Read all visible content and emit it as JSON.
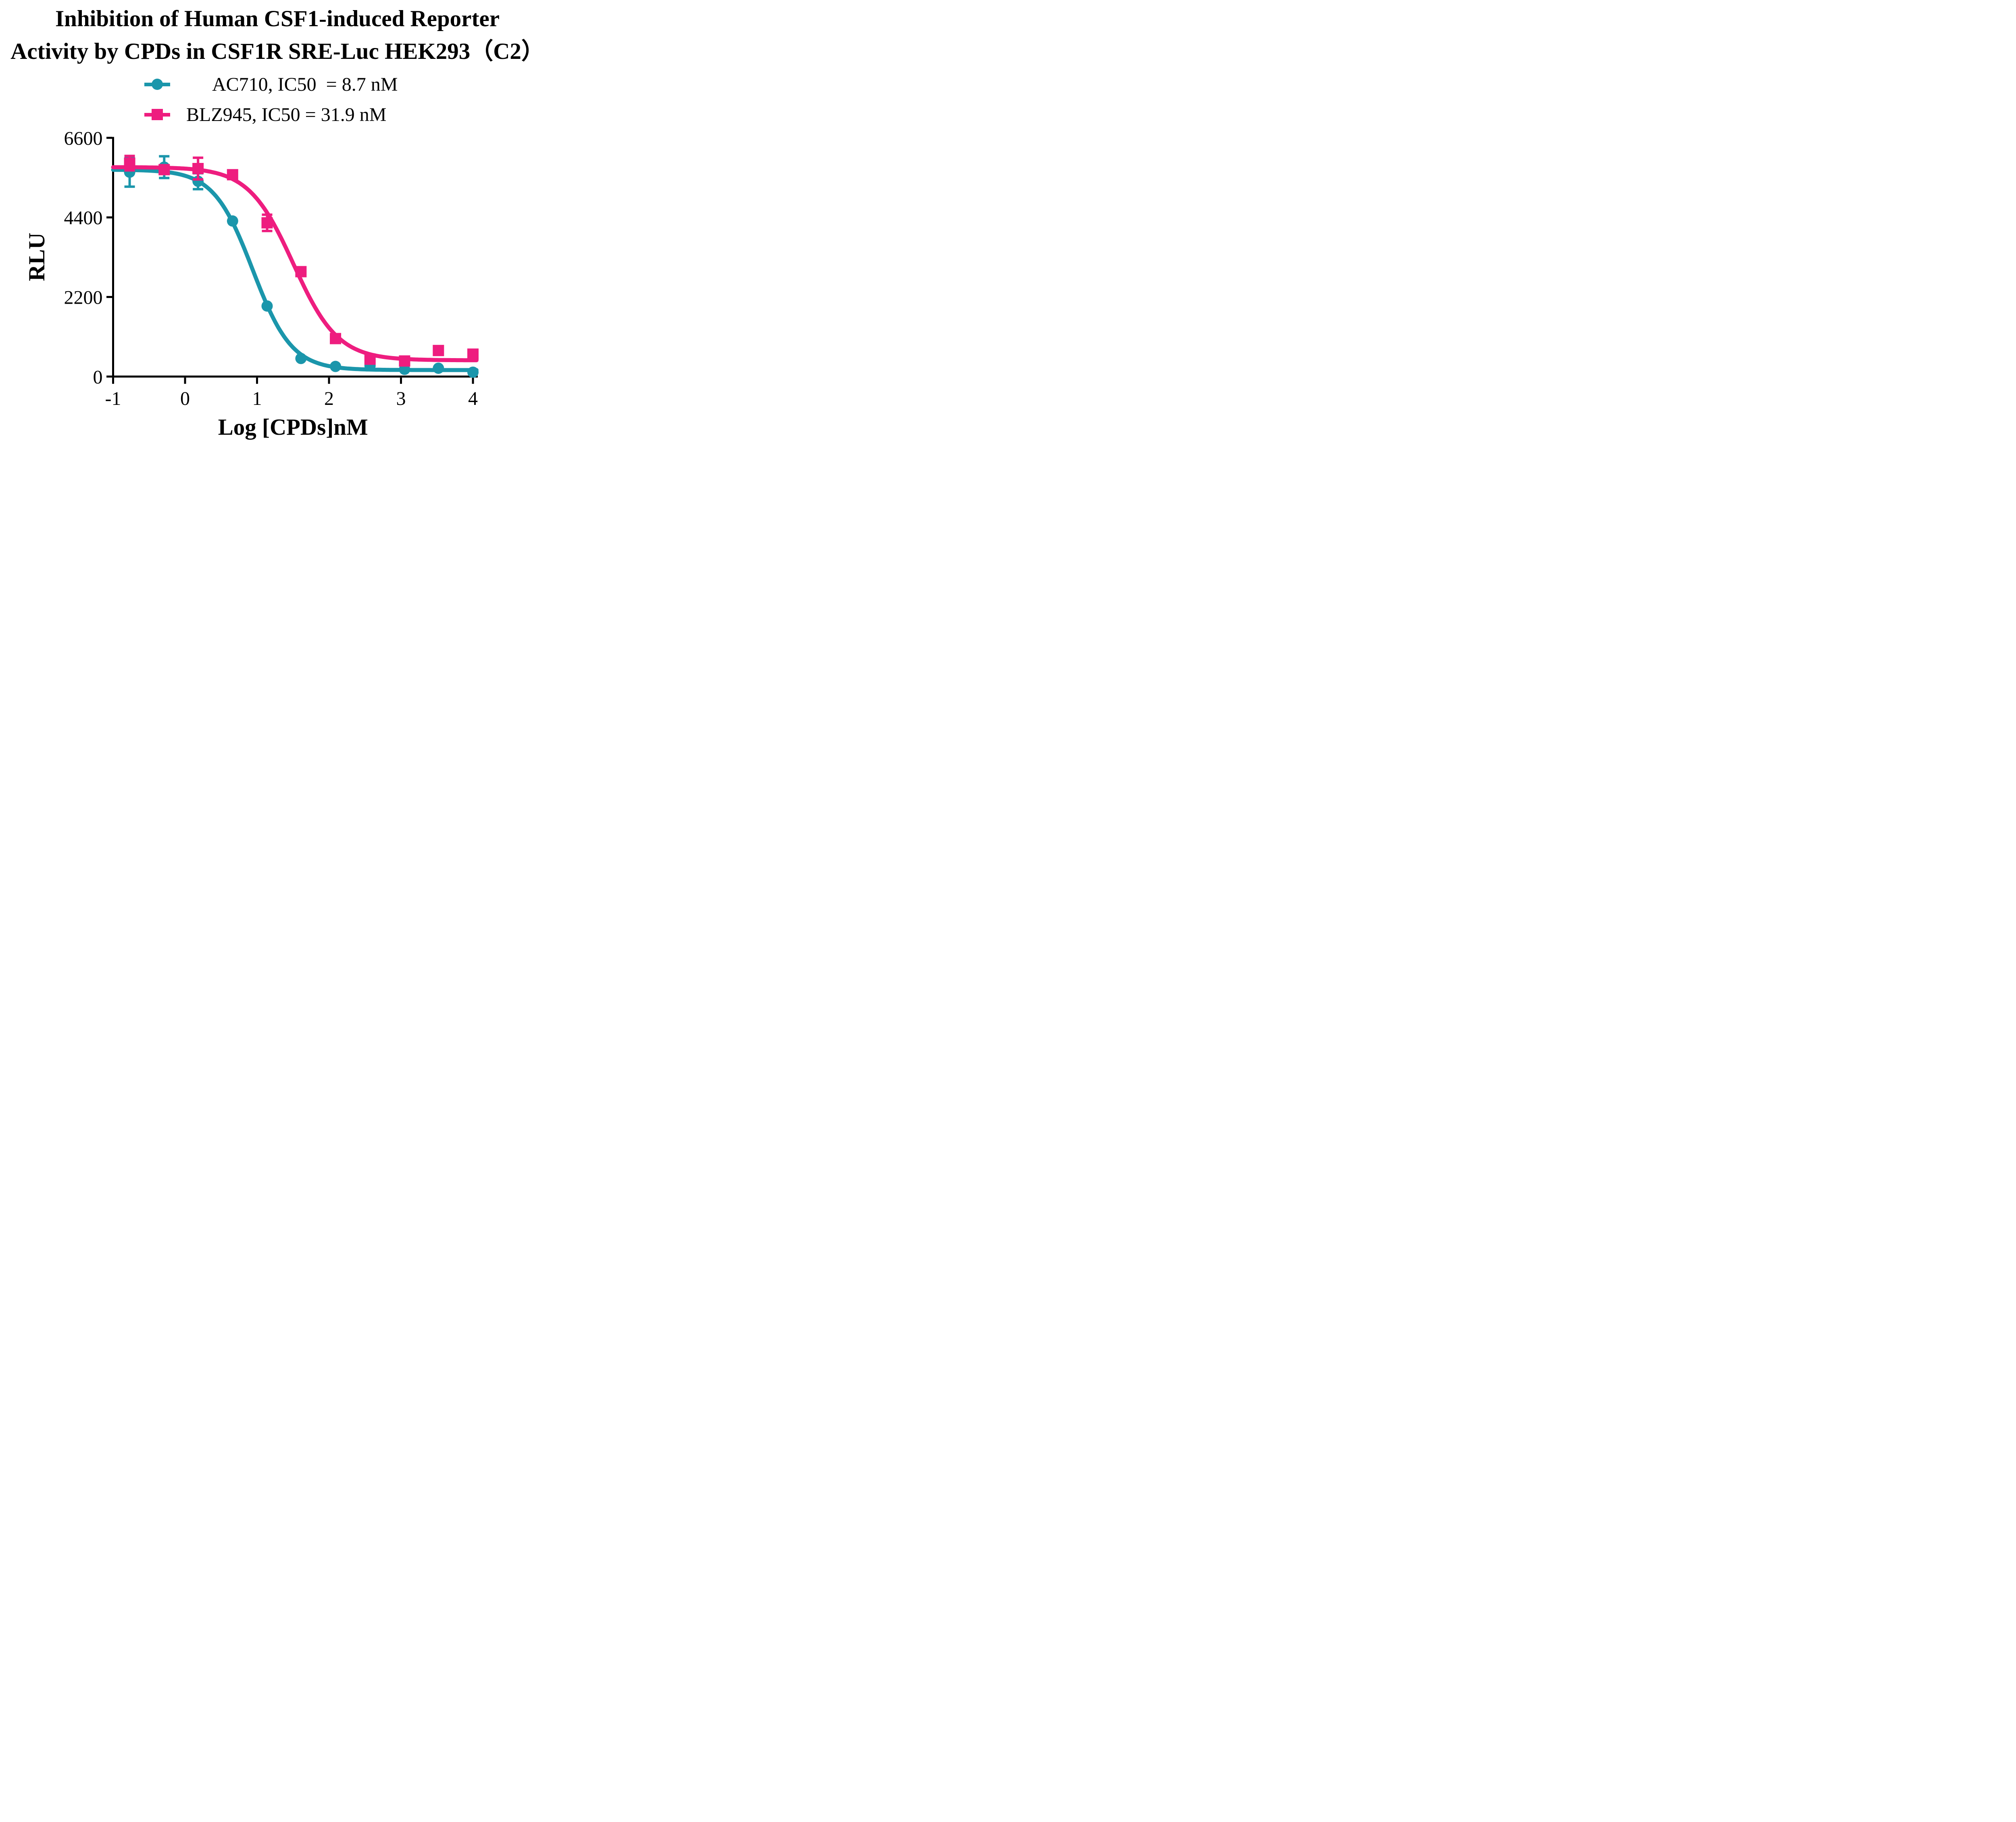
{
  "page": {
    "background": "#ffffff"
  },
  "chart_data": {
    "type": "scatter",
    "title_lines": [
      "Inhibition of Human CSF1-induced Reporter",
      "Activity by CPDs in CSF1R SRE-Luc HEK293（C2）"
    ],
    "title": "Inhibition of Human CSF1-induced Reporter Activity by CPDs in CSF1R SRE-Luc HEK293（C2）",
    "xlabel": "Log [CPDs]nM",
    "ylabel": "RLU",
    "x_ticks": [
      -1,
      0,
      1,
      2,
      3,
      4
    ],
    "y_ticks": [
      0,
      2200,
      4400,
      6600
    ],
    "xlim": [
      -1,
      4.05
    ],
    "ylim": [
      0,
      6600
    ],
    "grid": false,
    "legend_position": "top-center",
    "axis_color": "#000000",
    "series": [
      {
        "name": "AC710",
        "label": "AC710, IC50  = 8.7 nM",
        "ic50_nM": 8.7,
        "color": "#1b96ab",
        "marker": "circle",
        "points": [
          {
            "x": -0.77,
            "y": 5650,
            "err": 400
          },
          {
            "x": -0.29,
            "y": 5790,
            "err": 300
          },
          {
            "x": 0.18,
            "y": 5400,
            "err": 220
          },
          {
            "x": 0.66,
            "y": 4300,
            "err": 0
          },
          {
            "x": 1.14,
            "y": 1950,
            "err": 0
          },
          {
            "x": 1.61,
            "y": 500,
            "err": 0
          },
          {
            "x": 2.09,
            "y": 280,
            "err": 0
          },
          {
            "x": 2.57,
            "y": 300,
            "err": 0
          },
          {
            "x": 3.05,
            "y": 200,
            "err": 0
          },
          {
            "x": 3.52,
            "y": 230,
            "err": 0
          },
          {
            "x": 4.0,
            "y": 120,
            "err": 0
          }
        ],
        "fit": {
          "top": 5720,
          "bottom": 180,
          "logIC50": 0.94,
          "hill": 1.6
        }
      },
      {
        "name": "BLZ945",
        "label": "BLZ945, IC50 = 31.9 nM",
        "ic50_nM": 31.9,
        "color": "#ee1d7f",
        "marker": "square",
        "points": [
          {
            "x": -0.77,
            "y": 5900,
            "err": 200
          },
          {
            "x": -0.29,
            "y": 5720,
            "err": 0
          },
          {
            "x": 0.18,
            "y": 5750,
            "err": 300
          },
          {
            "x": 0.66,
            "y": 5580,
            "err": 0
          },
          {
            "x": 1.14,
            "y": 4250,
            "err": 225
          },
          {
            "x": 1.61,
            "y": 2900,
            "err": 0
          },
          {
            "x": 2.09,
            "y": 1050,
            "err": 0
          },
          {
            "x": 2.57,
            "y": 480,
            "err": 0
          },
          {
            "x": 3.05,
            "y": 430,
            "err": 0
          },
          {
            "x": 3.52,
            "y": 720,
            "err": 0
          },
          {
            "x": 4.0,
            "y": 620,
            "err": 0
          }
        ],
        "fit": {
          "top": 5790,
          "bottom": 450,
          "logIC50": 1.504,
          "hill": 1.4
        }
      }
    ]
  }
}
